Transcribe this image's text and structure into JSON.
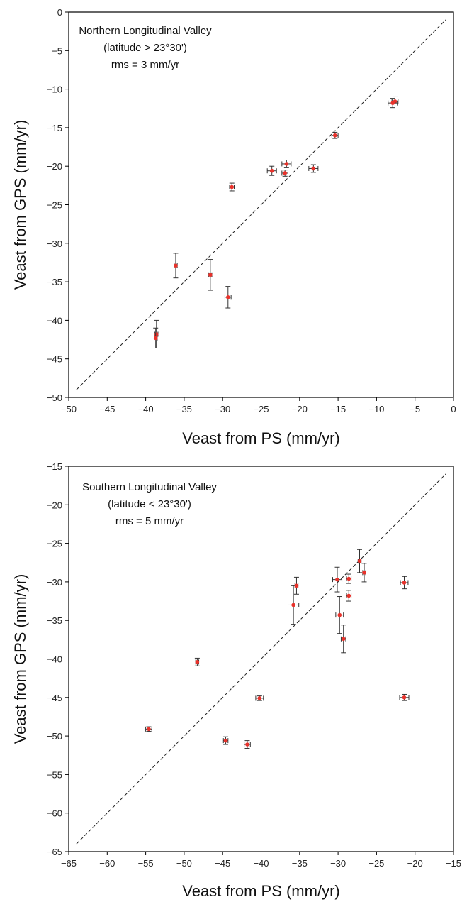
{
  "chart_data": [
    {
      "type": "scatter",
      "title": "",
      "annotation": [
        "Northern Longitudinal Valley",
        "(latitude > 23°30')",
        "rms = 3 mm/yr"
      ],
      "xlabel": "Veast from PS (mm/yr)",
      "ylabel": "Veast from GPS (mm/yr)",
      "xlim": [
        -50,
        0
      ],
      "ylim": [
        -50,
        0
      ],
      "xticks": [
        -50,
        -45,
        -40,
        -35,
        -30,
        -25,
        -20,
        -15,
        -10,
        -5,
        0
      ],
      "yticks": [
        -50,
        -45,
        -40,
        -35,
        -30,
        -25,
        -20,
        -15,
        -10,
        -5,
        0
      ],
      "xtick_labels": [
        "−50",
        "−45",
        "−40",
        "−35",
        "−30",
        "−25",
        "−20",
        "−15",
        "−10",
        "−5",
        "0"
      ],
      "ytick_labels": [
        "−50",
        "−45",
        "−40",
        "−35",
        "−30",
        "−25",
        "−20",
        "−15",
        "−10",
        "−5",
        "0"
      ],
      "reference_line": "y = x (dashed)",
      "grid": false,
      "marker_color": "#e8322b",
      "points": [
        {
          "x": -7.6,
          "y": -11.6,
          "xerr": 0.4,
          "yerr": 0.6
        },
        {
          "x": -7.9,
          "y": -11.8,
          "xerr": 0.6,
          "yerr": 0.6
        },
        {
          "x": -15.4,
          "y": -16.0,
          "xerr": 0.4,
          "yerr": 0.4
        },
        {
          "x": -18.2,
          "y": -20.3,
          "xerr": 0.6,
          "yerr": 0.5
        },
        {
          "x": -21.7,
          "y": -19.7,
          "xerr": 0.6,
          "yerr": 0.5
        },
        {
          "x": -21.9,
          "y": -20.9,
          "xerr": 0.4,
          "yerr": 0.4
        },
        {
          "x": -23.6,
          "y": -20.6,
          "xerr": 0.6,
          "yerr": 0.6
        },
        {
          "x": -28.8,
          "y": -22.7,
          "xerr": 0.3,
          "yerr": 0.5
        },
        {
          "x": -29.3,
          "y": -37.0,
          "xerr": 0.4,
          "yerr": 1.4
        },
        {
          "x": -31.6,
          "y": -34.1,
          "xerr": 0.2,
          "yerr": 2.0
        },
        {
          "x": -36.1,
          "y": -32.9,
          "xerr": 0.2,
          "yerr": 1.6
        },
        {
          "x": -38.6,
          "y": -41.8,
          "xerr": 0.2,
          "yerr": 1.8
        },
        {
          "x": -38.7,
          "y": -42.3,
          "xerr": 0.2,
          "yerr": 1.3
        }
      ]
    },
    {
      "type": "scatter",
      "title": "",
      "annotation": [
        "Southern Longitudinal Valley",
        "(latitude < 23°30')",
        "rms = 5 mm/yr"
      ],
      "xlabel": "Veast from PS (mm/yr)",
      "ylabel": "Veast from GPS (mm/yr)",
      "xlim": [
        -65,
        -15
      ],
      "ylim": [
        -65,
        -15
      ],
      "xticks": [
        -65,
        -60,
        -55,
        -50,
        -45,
        -40,
        -35,
        -30,
        -25,
        -20,
        -15
      ],
      "yticks": [
        -65,
        -60,
        -55,
        -50,
        -45,
        -40,
        -35,
        -30,
        -25,
        -20,
        -15
      ],
      "xtick_labels": [
        "−65",
        "−60",
        "−55",
        "−50",
        "−45",
        "−40",
        "−35",
        "−30",
        "−25",
        "−20",
        "−15"
      ],
      "ytick_labels": [
        "−65",
        "−60",
        "−55",
        "−50",
        "−45",
        "−40",
        "−35",
        "−30",
        "−25",
        "−20",
        "−15"
      ],
      "reference_line": "y = x (dashed)",
      "grid": false,
      "marker_color": "#e8322b",
      "points": [
        {
          "x": -54.6,
          "y": -49.1,
          "xerr": 0.4,
          "yerr": 0.3
        },
        {
          "x": -48.3,
          "y": -40.4,
          "xerr": 0.2,
          "yerr": 0.5
        },
        {
          "x": -44.6,
          "y": -50.6,
          "xerr": 0.3,
          "yerr": 0.5
        },
        {
          "x": -41.8,
          "y": -51.1,
          "xerr": 0.4,
          "yerr": 0.5
        },
        {
          "x": -40.2,
          "y": -45.1,
          "xerr": 0.5,
          "yerr": 0.3
        },
        {
          "x": -35.8,
          "y": -33.0,
          "xerr": 0.7,
          "yerr": 2.5
        },
        {
          "x": -35.4,
          "y": -30.5,
          "xerr": 0.2,
          "yerr": 1.1
        },
        {
          "x": -30.1,
          "y": -29.7,
          "xerr": 0.6,
          "yerr": 1.6
        },
        {
          "x": -29.8,
          "y": -34.3,
          "xerr": 0.5,
          "yerr": 2.4
        },
        {
          "x": -29.3,
          "y": -37.4,
          "xerr": 0.3,
          "yerr": 1.8
        },
        {
          "x": -28.6,
          "y": -29.6,
          "xerr": 0.3,
          "yerr": 0.6
        },
        {
          "x": -28.6,
          "y": -31.8,
          "xerr": 0.3,
          "yerr": 0.7
        },
        {
          "x": -27.2,
          "y": -27.3,
          "xerr": 0.2,
          "yerr": 1.5
        },
        {
          "x": -26.6,
          "y": -28.8,
          "xerr": 0.2,
          "yerr": 1.2
        },
        {
          "x": -21.4,
          "y": -30.1,
          "xerr": 0.5,
          "yerr": 0.8
        },
        {
          "x": -21.4,
          "y": -45.0,
          "xerr": 0.6,
          "yerr": 0.4
        }
      ]
    }
  ]
}
